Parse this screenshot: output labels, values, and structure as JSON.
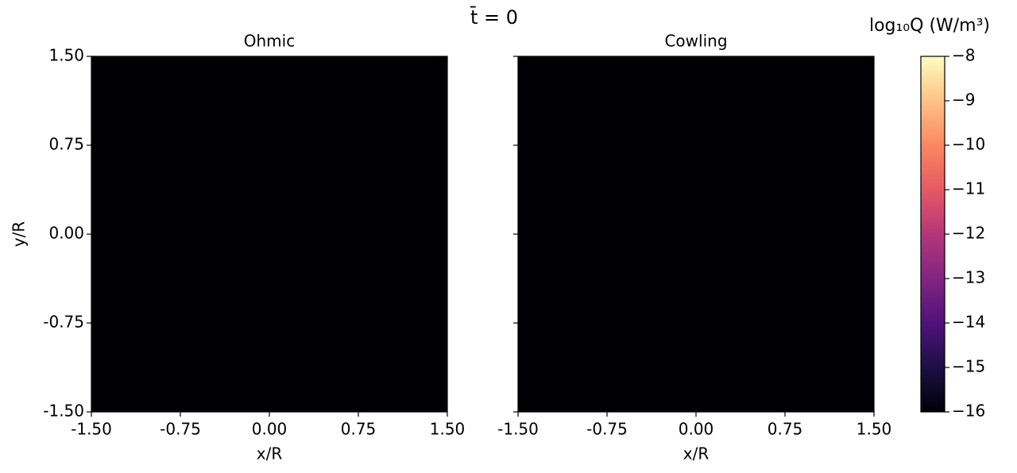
{
  "figure": {
    "title": "t̄ = 0"
  },
  "chart_data": [
    {
      "type": "heatmap",
      "title": "Ohmic",
      "xlabel": "x/R",
      "ylabel": "y/R",
      "xlim": [
        -1.5,
        1.5
      ],
      "ylim": [
        -1.5,
        1.5
      ],
      "xticks": [
        {
          "value": -1.5,
          "label": "-1.50"
        },
        {
          "value": -0.75,
          "label": "-0.75"
        },
        {
          "value": 0,
          "label": "0.00"
        },
        {
          "value": 0.75,
          "label": "0.75"
        },
        {
          "value": 1.5,
          "label": "1.50"
        }
      ],
      "yticks": [
        {
          "value": -1.5,
          "label": "-1.50"
        },
        {
          "value": -0.75,
          "label": "-0.75"
        },
        {
          "value": 0,
          "label": "0.00"
        },
        {
          "value": 0.75,
          "label": "0.75"
        },
        {
          "value": 1.5,
          "label": "1.50"
        }
      ],
      "values": [
        [
          -16
        ]
      ]
    },
    {
      "type": "heatmap",
      "title": "Cowling",
      "xlabel": "x/R",
      "xlim": [
        -1.5,
        1.5
      ],
      "ylim": [
        -1.5,
        1.5
      ],
      "xticks": [
        {
          "value": -1.5,
          "label": "-1.50"
        },
        {
          "value": -0.75,
          "label": "-0.75"
        },
        {
          "value": 0,
          "label": "0.00"
        },
        {
          "value": 0.75,
          "label": "0.75"
        },
        {
          "value": 1.5,
          "label": "1.50"
        }
      ],
      "yticks": [
        -1.5,
        -0.75,
        0,
        0.75,
        1.5
      ],
      "ytick_labels": false,
      "values": [
        [
          -16
        ]
      ]
    }
  ],
  "colorbar": {
    "label": "log₁₀Q  (W/m³)",
    "lim": [
      -16,
      -8
    ],
    "ticks": [
      {
        "value": -16,
        "label": "−16"
      },
      {
        "value": -15,
        "label": "−15"
      },
      {
        "value": -14,
        "label": "−14"
      },
      {
        "value": -13,
        "label": "−13"
      },
      {
        "value": -12,
        "label": "−12"
      },
      {
        "value": -11,
        "label": "−11"
      },
      {
        "value": -10,
        "label": "−10"
      },
      {
        "value": -9,
        "label": "−9"
      },
      {
        "value": -8,
        "label": "−8"
      }
    ],
    "colors": [
      "#000004",
      "#1c1044",
      "#4f127b",
      "#812581",
      "#b5367a",
      "#e55964",
      "#fb8761",
      "#fec287",
      "#fcfdbf"
    ]
  }
}
